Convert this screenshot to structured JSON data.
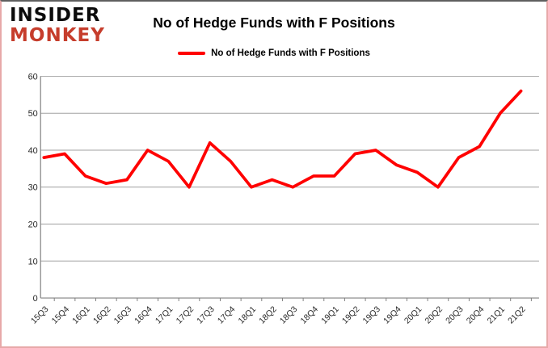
{
  "header": {
    "logo_line1": "INSIDER",
    "logo_line2": "MONKEY",
    "title": "No of Hedge Funds with F Positions"
  },
  "legend": {
    "label": "No of Hedge Funds with F Positions",
    "color": "#FF0000"
  },
  "chart_data": {
    "type": "line",
    "title": "No of Hedge Funds with F Positions",
    "categories": [
      "15Q3",
      "15Q4",
      "16Q1",
      "16Q2",
      "16Q3",
      "16Q4",
      "17Q1",
      "17Q2",
      "17Q3",
      "17Q4",
      "18Q1",
      "18Q2",
      "18Q3",
      "18Q4",
      "19Q1",
      "19Q2",
      "19Q3",
      "19Q4",
      "20Q1",
      "20Q2",
      "20Q3",
      "20Q4",
      "21Q1",
      "21Q2"
    ],
    "series": [
      {
        "name": "No of Hedge Funds with F Positions",
        "color": "#FF0000",
        "values": [
          38,
          39,
          33,
          31,
          32,
          40,
          37,
          30,
          42,
          37,
          30,
          32,
          30,
          33,
          33,
          39,
          40,
          36,
          34,
          30,
          38,
          41,
          50,
          56
        ]
      }
    ],
    "xlabel": "",
    "ylabel": "",
    "ylim": [
      0,
      60
    ],
    "yticks": [
      0,
      10,
      20,
      30,
      40,
      50,
      60
    ],
    "grid": true,
    "legend_position": "top",
    "colors": {
      "line": "#FF0000",
      "gridline": "#a0a0a0",
      "axis_line": "#808080",
      "tick_text": "#262626",
      "logo_black": "#0c0c0c",
      "logo_red": "#c63d2c"
    }
  }
}
